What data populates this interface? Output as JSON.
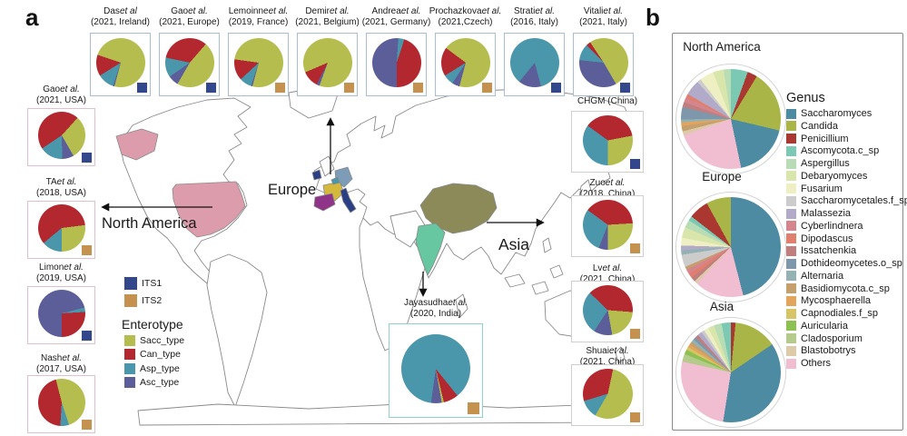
{
  "figure": {
    "panel_a_label": "a",
    "panel_b_label": "b"
  },
  "map": {
    "region_labels": {
      "europe": "Europe",
      "north_america": "North America",
      "asia": "Asia"
    },
    "highlighted_countries": [
      {
        "name": "USA",
        "color": "#dd9cab"
      },
      {
        "name": "Ireland",
        "color": "#2b3f85"
      },
      {
        "name": "France",
        "color": "#d4b93c"
      },
      {
        "name": "Belgium",
        "color": "#4a96aa"
      },
      {
        "name": "Germany",
        "color": "#7d9cb8"
      },
      {
        "name": "Spain",
        "color": "#8f3488"
      },
      {
        "name": "Italy",
        "color": "#2b3f85"
      },
      {
        "name": "China",
        "color": "#8b8a58"
      },
      {
        "name": "India",
        "color": "#66c7a0"
      }
    ]
  },
  "legend_a": {
    "its": [
      {
        "label": "ITS1",
        "color": "#32478c"
      },
      {
        "label": "ITS2",
        "color": "#c4914f"
      }
    ],
    "enterotype_title": "Enterotype",
    "enterotypes": [
      {
        "key": "Sacc_type",
        "label": "Sacc_type",
        "color": "#b4bd4d"
      },
      {
        "key": "Can_type",
        "label": "Can_type",
        "color": "#b2282e"
      },
      {
        "key": "Asp_type",
        "label": "Asp_type",
        "color": "#4a96aa"
      },
      {
        "key": "Asc_type",
        "label": "Asc_type",
        "color": "#5c5e99"
      }
    ]
  },
  "panel_b": {
    "genus_title": "Genus",
    "genus": [
      {
        "label": "Saccharomyces",
        "color": "#4d8ba3"
      },
      {
        "label": "Candida",
        "color": "#a9b547"
      },
      {
        "label": "Penicillium",
        "color": "#ab3731"
      },
      {
        "label": "Ascomycota.c_sp",
        "color": "#7bc8b3"
      },
      {
        "label": "Aspergillus",
        "color": "#b8dcb6"
      },
      {
        "label": "Debaryomyces",
        "color": "#d8e5ab"
      },
      {
        "label": "Fusarium",
        "color": "#eef0c4"
      },
      {
        "label": "Saccharomycetales.f_sp",
        "color": "#cccccc"
      },
      {
        "label": "Malassezia",
        "color": "#b2aac9"
      },
      {
        "label": "Cyberlindnera",
        "color": "#d5858e"
      },
      {
        "label": "Dipodascus",
        "color": "#e07f6e"
      },
      {
        "label": "Issatchenkia",
        "color": "#c17e7e"
      },
      {
        "label": "Dothideomycetes.o_sp",
        "color": "#7e97ab"
      },
      {
        "label": "Alternaria",
        "color": "#94b2b3"
      },
      {
        "label": "Basidiomycota.c_sp",
        "color": "#c6a06c"
      },
      {
        "label": "Mycosphaerella",
        "color": "#e2a55b"
      },
      {
        "label": "Capnodiales.f_sp",
        "color": "#d7c467"
      },
      {
        "label": "Auricularia",
        "color": "#8cc050"
      },
      {
        "label": "Cladosporium",
        "color": "#b5cb8c"
      },
      {
        "label": "Blastobotrys",
        "color": "#dccaa8"
      },
      {
        "label": "Others",
        "color": "#f1bdd1"
      }
    ]
  },
  "chart_data": {
    "type": "pie-collection",
    "study_pies": [
      {
        "type": "pie",
        "group": "europe",
        "author": "Das",
        "etal": "et al",
        "year_loc": "(2021, Ireland)",
        "its": "ITS1",
        "start_angle": 195,
        "values": {
          "Sacc_type": 74,
          "Can_type": 14,
          "Asp_type": 11,
          "Asc_type": 1
        }
      },
      {
        "type": "pie",
        "group": "europe",
        "author": "Gao",
        "etal": "et al.",
        "year_loc": "(2021, Europe)",
        "its": "ITS1",
        "start_angle": 210,
        "values": {
          "Sacc_type": 47,
          "Can_type": 33,
          "Asp_type": 13,
          "Asc_type": 7
        }
      },
      {
        "type": "pie",
        "group": "europe",
        "author": "Lemoinne",
        "etal": "et al.",
        "year_loc": "(2019, France)",
        "its": "ITS2",
        "start_angle": 195,
        "values": {
          "Sacc_type": 77,
          "Can_type": 14,
          "Asp_type": 8,
          "Asc_type": 1
        }
      },
      {
        "type": "pie",
        "group": "europe",
        "author": "Demir",
        "etal": "et al.",
        "year_loc": "(2021, Belgium)",
        "its": "ITS2",
        "start_angle": 200,
        "values": {
          "Sacc_type": 87,
          "Can_type": 11,
          "Asp_type": 0,
          "Asc_type": 2
        }
      },
      {
        "type": "pie",
        "group": "europe",
        "author": "Andrea",
        "etal": "et al.",
        "year_loc": "(2021, Germany)",
        "its": "ITS2",
        "start_angle": 180,
        "values": {
          "Sacc_type": 0,
          "Can_type": 45,
          "Asp_type": 4,
          "Asc_type": 51
        }
      },
      {
        "type": "pie",
        "group": "europe",
        "author": "Prochazkova",
        "etal": "et al.",
        "year_loc": "(2021,Czech)",
        "its": "ITS2",
        "start_angle": 195,
        "values": {
          "Sacc_type": 69,
          "Can_type": 19,
          "Asp_type": 7,
          "Asc_type": 5
        }
      },
      {
        "type": "pie",
        "group": "europe",
        "author": "Strati",
        "etal": "et al.",
        "year_loc": "(2016, Italy)",
        "its": "ITS1",
        "start_angle": 165,
        "values": {
          "Sacc_type": 0,
          "Can_type": 0,
          "Asp_type": 85,
          "Asc_type": 15
        }
      },
      {
        "type": "pie",
        "group": "europe",
        "author": "Vitali",
        "etal": "et al.",
        "year_loc": "(2021, Italy)",
        "its": "ITS1",
        "start_angle": 150,
        "values": {
          "Sacc_type": 51,
          "Can_type": 3,
          "Asp_type": 11,
          "Asc_type": 35
        }
      },
      {
        "type": "pie",
        "group": "north_america",
        "author": "Gao",
        "etal": "et al.",
        "year_loc": "(2021, USA)",
        "its": "ITS1",
        "start_angle": 150,
        "values": {
          "Sacc_type": 30,
          "Can_type": 46,
          "Asp_type": 16,
          "Asc_type": 8
        }
      },
      {
        "type": "pie",
        "group": "north_america",
        "author": "TA",
        "etal": "et al.",
        "year_loc": "(2018, USA)",
        "its": "ITS2",
        "start_angle": 180,
        "values": {
          "Sacc_type": 27,
          "Can_type": 59,
          "Asp_type": 14,
          "Asc_type": 0
        }
      },
      {
        "type": "pie",
        "group": "north_america",
        "author": "Limon",
        "etal": "et al.",
        "year_loc": "(2019, USA)",
        "its": "ITS1",
        "start_angle": 180,
        "values": {
          "Sacc_type": 0,
          "Can_type": 26,
          "Asp_type": 3,
          "Asc_type": 71
        }
      },
      {
        "type": "pie",
        "group": "north_america",
        "author": "Nash",
        "etal": "et al.",
        "year_loc": "(2017, USA)",
        "its": "ITS2",
        "start_angle": 162,
        "values": {
          "Sacc_type": 49,
          "Can_type": 45,
          "Asp_type": 6,
          "Asc_type": 0
        }
      },
      {
        "type": "pie",
        "group": "asia",
        "author": "CHGM (China)",
        "etal": "",
        "year_loc": "",
        "its": "ITS1",
        "start_angle": 180,
        "values": {
          "Sacc_type": 28,
          "Can_type": 37,
          "Asp_type": 35,
          "Asc_type": 0
        }
      },
      {
        "type": "pie",
        "group": "asia",
        "author": "Zuo",
        "etal": "et al.",
        "year_loc": "(2018, China)",
        "its": "ITS2",
        "start_angle": 180,
        "values": {
          "Sacc_type": 26,
          "Can_type": 39,
          "Asp_type": 29,
          "Asc_type": 6
        }
      },
      {
        "type": "pie",
        "group": "asia",
        "author": "Lv",
        "etal": "et al.",
        "year_loc": "(2021, China)",
        "its": "ITS2",
        "start_angle": 170,
        "values": {
          "Sacc_type": 21,
          "Can_type": 39,
          "Asp_type": 28,
          "Asc_type": 12
        }
      },
      {
        "type": "pie",
        "group": "asia",
        "author": "Shuai",
        "etal": "et al.",
        "year_loc": "(2021, China)",
        "its": "ITS2",
        "start_angle": 210,
        "values": {
          "Sacc_type": 55,
          "Can_type": 33,
          "Asp_type": 12,
          "Asc_type": 0
        }
      },
      {
        "type": "pie",
        "group": "india",
        "author": "Jayasudha",
        "etal": "et al.",
        "year_loc": "(2020, India)",
        "its": "ITS2",
        "start_angle": 170,
        "values": {
          "Sacc_type": 1,
          "Can_type": 7,
          "Asp_type": 87,
          "Asc_type": 5
        }
      }
    ],
    "region_pies": [
      {
        "type": "pie",
        "region": "North America",
        "slices": [
          [
            "Ascomycota.c_sp",
            5.5
          ],
          [
            "Penicillium",
            3.2
          ],
          [
            "Candida",
            20
          ],
          [
            "Saccharomyces",
            18
          ],
          [
            "Others",
            23
          ],
          [
            "Blastobotrys",
            1.3
          ],
          [
            "Basidiomycota.c_sp",
            1.7
          ],
          [
            "Mycosphaerella",
            1.2
          ],
          [
            "Alternaria",
            1.0
          ],
          [
            "Dothideomycetes.o_sp",
            4.0
          ],
          [
            "Issatchenkia",
            1.6
          ],
          [
            "Cyberlindnera",
            1.6
          ],
          [
            "Dipodascus",
            1.2
          ],
          [
            "Malassezia",
            5.0
          ],
          [
            "Saccharomycetales.f_sp",
            1.3
          ],
          [
            "Fusarium",
            4.6
          ],
          [
            "Debaryomyces",
            3.5
          ],
          [
            "Aspergillus",
            2.3
          ]
        ]
      },
      {
        "type": "pie",
        "region": "Europe",
        "slices": [
          [
            "Saccharomyces",
            46
          ],
          [
            "Others",
            16
          ],
          [
            "Blastobotrys",
            1.0
          ],
          [
            "Issatchenkia",
            1.5
          ],
          [
            "Dipodascus",
            1.5
          ],
          [
            "Cyberlindnera",
            1.5
          ],
          [
            "Basidiomycota.c_sp",
            1.0
          ],
          [
            "Saccharomycetales.f_sp",
            4.0
          ],
          [
            "Alternaria",
            1.5
          ],
          [
            "Malassezia",
            1.5
          ],
          [
            "Fusarium",
            2.5
          ],
          [
            "Debaryomyces",
            3.5
          ],
          [
            "Aspergillus",
            2.5
          ],
          [
            "Ascomycota.c_sp",
            1.5
          ],
          [
            "Penicillium",
            6.5
          ],
          [
            "Candida",
            8.0
          ]
        ]
      },
      {
        "type": "pie",
        "region": "Asia",
        "slices": [
          [
            "Penicillium",
            1.5
          ],
          [
            "Candida",
            14
          ],
          [
            "Saccharomyces",
            37
          ],
          [
            "Others",
            26
          ],
          [
            "Cladosporium",
            2.5
          ],
          [
            "Auricularia",
            1.5
          ],
          [
            "Capnodiales.f_sp",
            1.0
          ],
          [
            "Mycosphaerella",
            1.0
          ],
          [
            "Basidiomycota.c_sp",
            1.0
          ],
          [
            "Alternaria",
            1.0
          ],
          [
            "Dothideomycetes.o_sp",
            1.0
          ],
          [
            "Issatchenkia",
            1.0
          ],
          [
            "Malassezia",
            1.5
          ],
          [
            "Saccharomycetales.f_sp",
            1.0
          ],
          [
            "Fusarium",
            1.5
          ],
          [
            "Debaryomyces",
            2.0
          ],
          [
            "Aspergillus",
            2.5
          ],
          [
            "Ascomycota.c_sp",
            3.0
          ]
        ]
      }
    ]
  }
}
